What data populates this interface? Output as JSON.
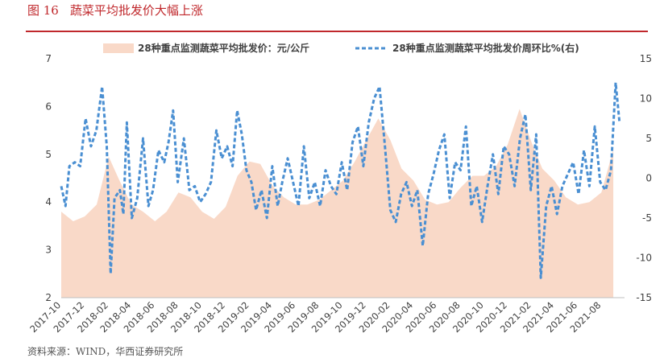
{
  "figure": {
    "number": "图 16",
    "title": "蔬菜平均批发价大幅上涨",
    "source": "资料来源：WIND，华西证券研究所"
  },
  "colors": {
    "area": "#f9d9c8",
    "line": "#4a8fd2",
    "accent": "#c0282c",
    "axis_text": "#404040"
  },
  "chart_data": {
    "type": "area",
    "title": "",
    "xlabel": "",
    "ylabel": "",
    "y2label": "",
    "ylim": [
      2,
      7
    ],
    "y_ticks": [
      2,
      3,
      4,
      5,
      6,
      7
    ],
    "y2lim": [
      -15,
      15
    ],
    "y2_ticks": [
      -15,
      -10,
      -5,
      0,
      5,
      10,
      15
    ],
    "grid": false,
    "legend_position": "top",
    "x_range": [
      "2017-10",
      "2021-09"
    ],
    "x_tick_labels": [
      "2017-10",
      "2017-12",
      "2018-02",
      "2018-04",
      "2018-06",
      "2018-08",
      "2018-10",
      "2018-12",
      "2019-02",
      "2019-04",
      "2019-06",
      "2019-08",
      "2019-10",
      "2019-12",
      "2020-02",
      "2020-04",
      "2020-06",
      "2020-08",
      "2020-10",
      "2020-12",
      "2021-02",
      "2021-04",
      "2021-06",
      "2021-08"
    ],
    "series": [
      {
        "name": "28种重点监测蔬菜平均批发价：元/公斤",
        "axis": "left",
        "style": "area",
        "points": [
          [
            "2017-10",
            3.8
          ],
          [
            "2017-11",
            3.6
          ],
          [
            "2017-12",
            3.7
          ],
          [
            "2018-01",
            3.95
          ],
          [
            "2018-02",
            4.95
          ],
          [
            "2018-03",
            4.45
          ],
          [
            "2018-04",
            3.95
          ],
          [
            "2018-05",
            3.8
          ],
          [
            "2018-06",
            3.6
          ],
          [
            "2018-07",
            3.8
          ],
          [
            "2018-08",
            4.2
          ],
          [
            "2018-09",
            4.1
          ],
          [
            "2018-10",
            3.8
          ],
          [
            "2018-11",
            3.65
          ],
          [
            "2018-12",
            3.9
          ],
          [
            "2019-01",
            4.55
          ],
          [
            "2019-02",
            4.85
          ],
          [
            "2019-03",
            4.8
          ],
          [
            "2019-04",
            4.35
          ],
          [
            "2019-05",
            4.1
          ],
          [
            "2019-06",
            3.95
          ],
          [
            "2019-07",
            3.95
          ],
          [
            "2019-08",
            4.05
          ],
          [
            "2019-09",
            4.25
          ],
          [
            "2019-10",
            4.45
          ],
          [
            "2019-11",
            4.85
          ],
          [
            "2019-12",
            5.3
          ],
          [
            "2020-01",
            5.75
          ],
          [
            "2020-02",
            5.3
          ],
          [
            "2020-03",
            4.7
          ],
          [
            "2020-04",
            4.45
          ],
          [
            "2020-05",
            4.05
          ],
          [
            "2020-06",
            3.95
          ],
          [
            "2020-07",
            4.0
          ],
          [
            "2020-08",
            4.3
          ],
          [
            "2020-09",
            4.55
          ],
          [
            "2020-10",
            4.55
          ],
          [
            "2020-11",
            4.75
          ],
          [
            "2020-12",
            5.2
          ],
          [
            "2021-01",
            5.95
          ],
          [
            "2021-02",
            5.25
          ],
          [
            "2021-03",
            4.7
          ],
          [
            "2021-04",
            4.45
          ],
          [
            "2021-05",
            4.1
          ],
          [
            "2021-06",
            3.95
          ],
          [
            "2021-07",
            4.0
          ],
          [
            "2021-08",
            4.2
          ],
          [
            "2021-09",
            5.1
          ]
        ]
      },
      {
        "name": "28种重点监测蔬菜平均批发价周环比%(右)",
        "axis": "right",
        "style": "dashed-line",
        "points": [
          [
            "2017-10-01",
            -1.0
          ],
          [
            "2017-10-12",
            -3.5
          ],
          [
            "2017-10-22",
            1.5
          ],
          [
            "2017-11-05",
            2.0
          ],
          [
            "2017-11-19",
            1.5
          ],
          [
            "2017-12-03",
            7.5
          ],
          [
            "2017-12-17",
            4.0
          ],
          [
            "2017-12-31",
            6.0
          ],
          [
            "2018-01-15",
            11.5
          ],
          [
            "2018-01-27",
            4.0
          ],
          [
            "2018-02-06",
            -12.0
          ],
          [
            "2018-02-16",
            -2.5
          ],
          [
            "2018-03-02",
            -1.5
          ],
          [
            "2018-03-11",
            -4.5
          ],
          [
            "2018-03-20",
            7.0
          ],
          [
            "2018-04-02",
            -5.0
          ],
          [
            "2018-04-16",
            -2.5
          ],
          [
            "2018-05-01",
            5.0
          ],
          [
            "2018-05-15",
            -3.5
          ],
          [
            "2018-05-27",
            -1.5
          ],
          [
            "2018-06-10",
            3.5
          ],
          [
            "2018-06-25",
            2.0
          ],
          [
            "2018-07-06",
            4.5
          ],
          [
            "2018-07-18",
            8.5
          ],
          [
            "2018-07-30",
            -0.5
          ],
          [
            "2018-08-15",
            5.0
          ],
          [
            "2018-08-29",
            -1.5
          ],
          [
            "2018-09-12",
            -1.0
          ],
          [
            "2018-09-26",
            -3.0
          ],
          [
            "2018-10-10",
            -2.0
          ],
          [
            "2018-10-24",
            -0.5
          ],
          [
            "2018-11-07",
            6.0
          ],
          [
            "2018-11-21",
            2.5
          ],
          [
            "2018-12-05",
            4.0
          ],
          [
            "2018-12-19",
            1.5
          ],
          [
            "2018-12-31",
            8.5
          ],
          [
            "2019-01-12",
            5.5
          ],
          [
            "2019-01-24",
            1.0
          ],
          [
            "2019-02-06",
            -0.5
          ],
          [
            "2019-02-18",
            -4.0
          ],
          [
            "2019-03-04",
            -1.5
          ],
          [
            "2019-03-18",
            -5.0
          ],
          [
            "2019-04-01",
            1.5
          ],
          [
            "2019-04-15",
            -3.5
          ],
          [
            "2019-04-27",
            -0.5
          ],
          [
            "2019-05-11",
            2.5
          ],
          [
            "2019-05-25",
            -0.5
          ],
          [
            "2019-06-08",
            -3.5
          ],
          [
            "2019-06-22",
            4.0
          ],
          [
            "2019-07-06",
            -2.5
          ],
          [
            "2019-07-20",
            -0.5
          ],
          [
            "2019-08-03",
            -3.5
          ],
          [
            "2019-08-17",
            1.0
          ],
          [
            "2019-08-31",
            -1.0
          ],
          [
            "2019-09-14",
            -2.0
          ],
          [
            "2019-09-28",
            2.0
          ],
          [
            "2019-10-12",
            -1.5
          ],
          [
            "2019-10-26",
            4.5
          ],
          [
            "2019-11-09",
            6.5
          ],
          [
            "2019-11-23",
            1.5
          ],
          [
            "2019-12-07",
            7.0
          ],
          [
            "2019-12-21",
            10.0
          ],
          [
            "2020-01-04",
            11.5
          ],
          [
            "2020-01-18",
            4.0
          ],
          [
            "2020-02-01",
            -4.0
          ],
          [
            "2020-02-15",
            -5.5
          ],
          [
            "2020-02-29",
            -2.0
          ],
          [
            "2020-03-14",
            -0.5
          ],
          [
            "2020-03-28",
            -3.5
          ],
          [
            "2020-04-11",
            -1.5
          ],
          [
            "2020-04-25",
            -8.5
          ],
          [
            "2020-05-09",
            -2.0
          ],
          [
            "2020-05-23",
            0.5
          ],
          [
            "2020-06-06",
            3.5
          ],
          [
            "2020-06-20",
            5.5
          ],
          [
            "2020-07-04",
            -2.5
          ],
          [
            "2020-07-18",
            2.0
          ],
          [
            "2020-08-01",
            1.0
          ],
          [
            "2020-08-15",
            6.5
          ],
          [
            "2020-08-29",
            -3.5
          ],
          [
            "2020-09-12",
            -1.0
          ],
          [
            "2020-09-26",
            -5.5
          ],
          [
            "2020-10-10",
            -1.0
          ],
          [
            "2020-10-24",
            3.0
          ],
          [
            "2020-11-07",
            -2.0
          ],
          [
            "2020-11-21",
            4.0
          ],
          [
            "2020-12-05",
            3.0
          ],
          [
            "2020-12-19",
            -1.0
          ],
          [
            "2021-01-02",
            5.0
          ],
          [
            "2021-01-16",
            8.0
          ],
          [
            "2021-01-30",
            -1.5
          ],
          [
            "2021-02-13",
            5.5
          ],
          [
            "2021-02-25",
            -12.5
          ],
          [
            "2021-03-11",
            -3.5
          ],
          [
            "2021-03-25",
            -1.0
          ],
          [
            "2021-04-08",
            -4.5
          ],
          [
            "2021-04-22",
            -1.0
          ],
          [
            "2021-05-06",
            0.5
          ],
          [
            "2021-05-20",
            2.0
          ],
          [
            "2021-06-03",
            -2.0
          ],
          [
            "2021-06-17",
            3.5
          ],
          [
            "2021-07-01",
            -1.0
          ],
          [
            "2021-07-15",
            6.5
          ],
          [
            "2021-07-29",
            -0.5
          ],
          [
            "2021-08-12",
            -1.5
          ],
          [
            "2021-08-26",
            1.0
          ],
          [
            "2021-09-07",
            12.0
          ],
          [
            "2021-09-17",
            7.0
          ]
        ]
      }
    ]
  }
}
